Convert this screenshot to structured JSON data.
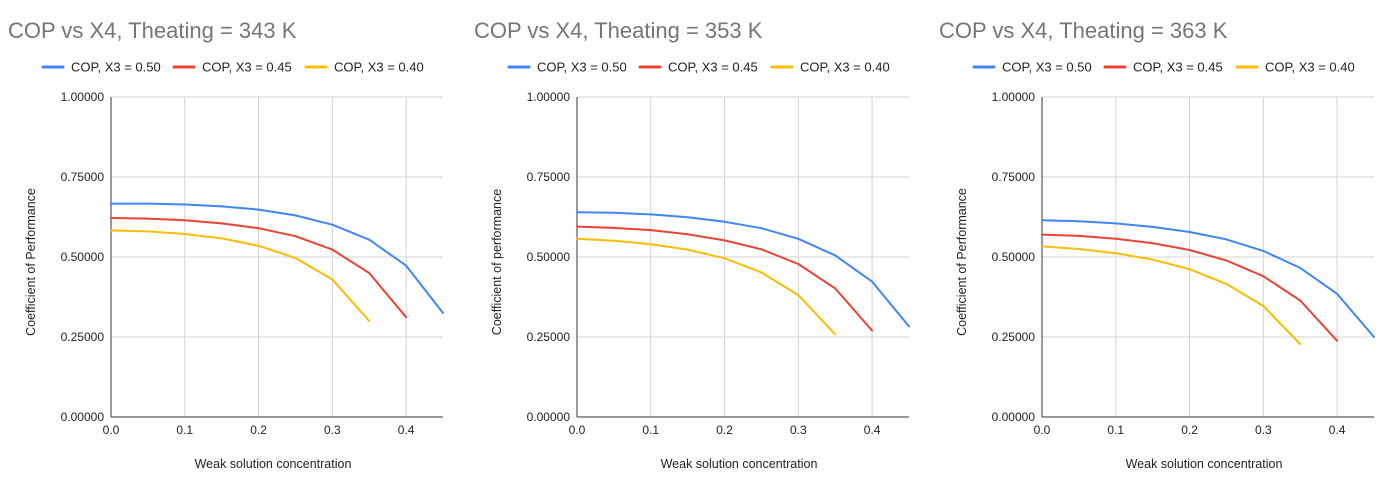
{
  "chart_data": [
    {
      "type": "line",
      "title": "COP vs X4, Theating = 343 K",
      "xlabel": "Weak solution concentration",
      "ylabel": "Coefficient of Performance",
      "xlim": [
        0,
        0.45
      ],
      "ylim": [
        0,
        1
      ],
      "x_ticks": [
        "0.0",
        "0.1",
        "0.2",
        "0.3",
        "0.4"
      ],
      "y_ticks": [
        "0.00000",
        "0.25000",
        "0.50000",
        "0.75000",
        "1.00000"
      ],
      "grid": true,
      "legend_position": "top",
      "series": [
        {
          "name": "COP, X3 = 0.50",
          "color": "#4285F4",
          "x": [
            0,
            0.05,
            0.1,
            0.15,
            0.2,
            0.25,
            0.3,
            0.35,
            0.4,
            0.45
          ],
          "values": [
            0.667,
            0.667,
            0.664,
            0.658,
            0.648,
            0.63,
            0.601,
            0.554,
            0.473,
            0.325
          ]
        },
        {
          "name": "COP, X3 = 0.45",
          "color": "#EA4335",
          "x": [
            0,
            0.05,
            0.1,
            0.15,
            0.2,
            0.25,
            0.3,
            0.35,
            0.4
          ],
          "values": [
            0.622,
            0.62,
            0.615,
            0.605,
            0.59,
            0.565,
            0.523,
            0.45,
            0.312
          ]
        },
        {
          "name": "COP, X3 = 0.40",
          "color": "#FBBC04",
          "x": [
            0,
            0.05,
            0.1,
            0.15,
            0.2,
            0.25,
            0.3,
            0.35
          ],
          "values": [
            0.583,
            0.58,
            0.572,
            0.558,
            0.535,
            0.497,
            0.43,
            0.3
          ]
        }
      ]
    },
    {
      "type": "line",
      "title": "COP vs X4, Theating = 353 K",
      "xlabel": "Weak solution concentration",
      "ylabel": "Coefficient of performance",
      "xlim": [
        0,
        0.45
      ],
      "ylim": [
        0,
        1
      ],
      "x_ticks": [
        "0.0",
        "0.1",
        "0.2",
        "0.3",
        "0.4"
      ],
      "y_ticks": [
        "0.00000",
        "0.25000",
        "0.50000",
        "0.75000",
        "1.00000"
      ],
      "grid": true,
      "legend_position": "top",
      "series": [
        {
          "name": "COP, X3 = 0.50",
          "color": "#4285F4",
          "x": [
            0,
            0.05,
            0.1,
            0.15,
            0.2,
            0.25,
            0.3,
            0.35,
            0.4,
            0.45
          ],
          "values": [
            0.64,
            0.638,
            0.633,
            0.624,
            0.61,
            0.59,
            0.557,
            0.505,
            0.423,
            0.283
          ]
        },
        {
          "name": "COP, X3 = 0.45",
          "color": "#EA4335",
          "x": [
            0,
            0.05,
            0.1,
            0.15,
            0.2,
            0.25,
            0.3,
            0.35,
            0.4
          ],
          "values": [
            0.595,
            0.591,
            0.584,
            0.571,
            0.552,
            0.524,
            0.478,
            0.402,
            0.27
          ]
        },
        {
          "name": "COP, X3 = 0.40",
          "color": "#FBBC04",
          "x": [
            0,
            0.05,
            0.1,
            0.15,
            0.2,
            0.25,
            0.3,
            0.35
          ],
          "values": [
            0.557,
            0.551,
            0.54,
            0.523,
            0.496,
            0.452,
            0.381,
            0.258
          ]
        }
      ]
    },
    {
      "type": "line",
      "title": "COP vs X4, Theating = 363 K",
      "xlabel": "Weak solution concentration",
      "ylabel": "Coefficient of Performance",
      "xlim": [
        0,
        0.45
      ],
      "ylim": [
        0,
        1
      ],
      "x_ticks": [
        "0.0",
        "0.1",
        "0.2",
        "0.3",
        "0.4"
      ],
      "y_ticks": [
        "0.00000",
        "0.25000",
        "0.50000",
        "0.75000",
        "1.00000"
      ],
      "grid": true,
      "legend_position": "top",
      "series": [
        {
          "name": "COP, X3 = 0.50",
          "color": "#4285F4",
          "x": [
            0,
            0.05,
            0.1,
            0.15,
            0.2,
            0.25,
            0.3,
            0.35,
            0.4,
            0.45
          ],
          "values": [
            0.615,
            0.612,
            0.605,
            0.594,
            0.578,
            0.555,
            0.519,
            0.466,
            0.385,
            0.25
          ]
        },
        {
          "name": "COP, X3 = 0.45",
          "color": "#EA4335",
          "x": [
            0,
            0.05,
            0.1,
            0.15,
            0.2,
            0.25,
            0.3,
            0.35,
            0.4
          ],
          "values": [
            0.57,
            0.566,
            0.557,
            0.543,
            0.522,
            0.489,
            0.44,
            0.364,
            0.238
          ]
        },
        {
          "name": "COP, X3 = 0.40",
          "color": "#FBBC04",
          "x": [
            0,
            0.05,
            0.1,
            0.15,
            0.2,
            0.25,
            0.3,
            0.35
          ],
          "values": [
            0.533,
            0.525,
            0.512,
            0.492,
            0.462,
            0.416,
            0.347,
            0.228
          ]
        }
      ]
    }
  ]
}
